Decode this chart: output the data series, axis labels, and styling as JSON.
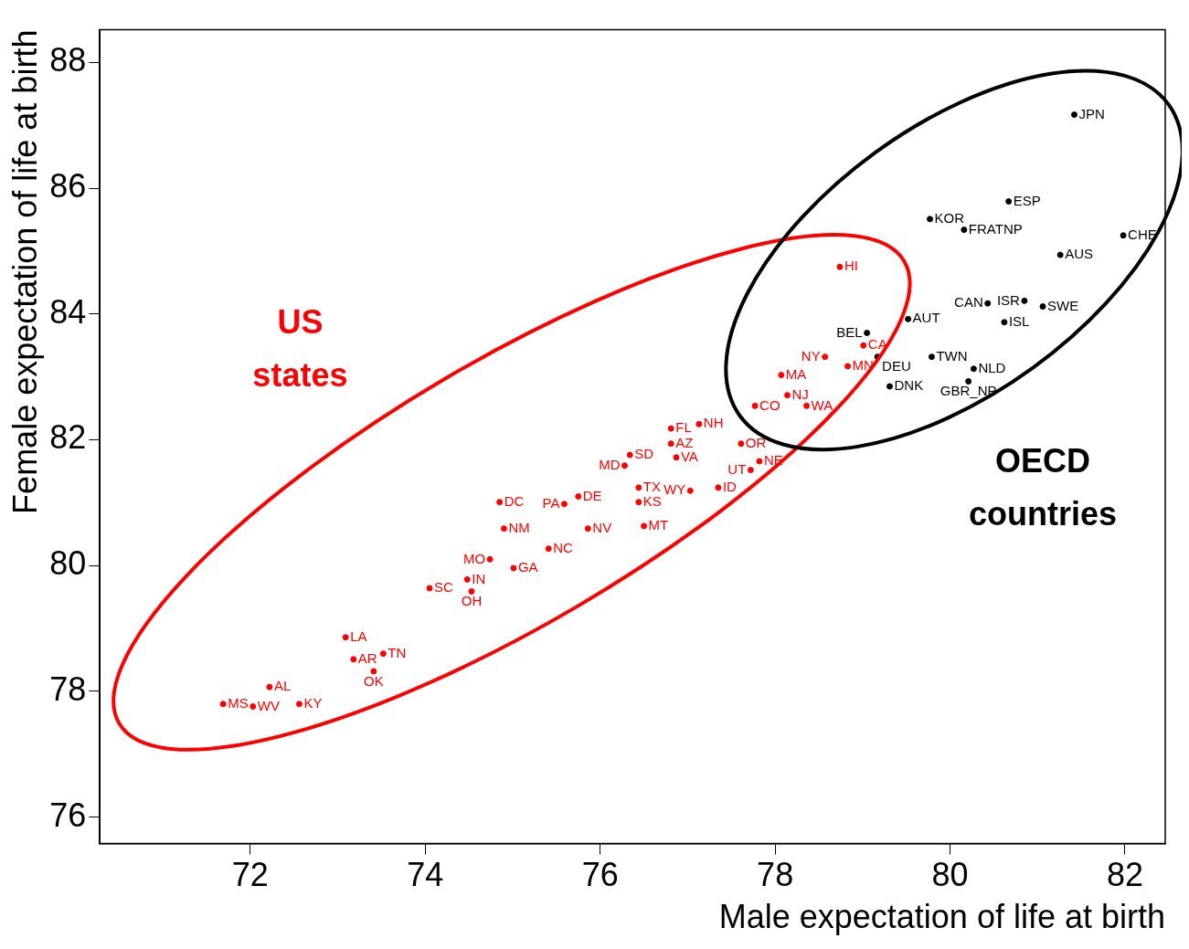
{
  "chart_data": {
    "type": "scatter",
    "xlabel": "Male expectation of life at birth",
    "ylabel": "Female expectation of life at birth",
    "xlim": [
      70.28,
      82.46
    ],
    "ylim": [
      75.58,
      88.52
    ],
    "xticks": [
      72,
      74,
      76,
      78,
      80,
      82
    ],
    "yticks": [
      76,
      78,
      80,
      82,
      84,
      86,
      88
    ],
    "grid": false,
    "legend": false,
    "marker": "circle",
    "series": [
      {
        "name": "US states",
        "color": "#ff0000",
        "x": [
          78.74,
          79.01,
          78.57,
          78.83,
          78.07,
          78.14,
          77.77,
          78.36,
          77.13,
          76.81,
          77.61,
          77.82,
          77.72,
          76.87,
          76.34,
          76.28,
          76.81,
          77.03,
          77.35,
          76.44,
          75.75,
          76.44,
          75.59,
          74.85,
          74.9,
          76.5,
          75.86,
          74.48,
          74.74,
          75.01,
          75.41,
          74.05,
          74.53,
          73.09,
          73.18,
          73.52,
          73.41,
          72.22,
          71.69,
          72.03,
          72.56
        ],
        "values": [
          84.75,
          83.5,
          83.32,
          83.17,
          83.03,
          82.71,
          82.54,
          82.54,
          82.25,
          82.18,
          81.94,
          81.66,
          81.52,
          81.72,
          81.76,
          81.59,
          81.94,
          81.19,
          81.24,
          81.24,
          81.1,
          81.01,
          80.98,
          81.01,
          80.59,
          80.63,
          80.59,
          79.78,
          80.1,
          79.96,
          80.27,
          79.64,
          79.59,
          78.86,
          78.51,
          78.6,
          78.32,
          78.07,
          77.8,
          77.76,
          77.8
        ],
        "value_labels": [
          "HI",
          "CA",
          "NY",
          "MN",
          "MA",
          "NJ",
          "CO",
          "WA",
          "NH",
          "FL",
          "OR",
          "NE",
          "UT",
          "VA",
          "SD",
          "MD",
          "AZ",
          "WY",
          "ID",
          "TX",
          "DE",
          "KS",
          "PA",
          "DC",
          "NM",
          "MT",
          "NV",
          "IN",
          "MO",
          "GA",
          "NC",
          "SC",
          "OH",
          "LA",
          "AR",
          "TN",
          "OK",
          "AL",
          "MS",
          "WV",
          "KY"
        ]
      },
      {
        "name": "OECD countries",
        "color": "#000000",
        "x": [
          81.42,
          80.67,
          79.77,
          80.16,
          81.26,
          81.98,
          80.43,
          80.85,
          81.06,
          80.62,
          79.52,
          79.05,
          79.17,
          79.79,
          80.27,
          79.31,
          80.21
        ],
        "values": [
          87.17,
          85.79,
          85.51,
          85.34,
          84.94,
          85.25,
          84.17,
          84.21,
          84.12,
          83.87,
          83.92,
          83.7,
          83.32,
          83.32,
          83.13,
          82.85,
          82.93
        ],
        "value_labels": [
          "JPN",
          "ESP",
          "KOR",
          "FRATNP",
          "AUS",
          "CHE",
          "CAN",
          "ISR",
          "SWE",
          "ISL",
          "AUT",
          "BEL",
          "DEU",
          "TWN",
          "NLD",
          "DNK",
          "GBR_NP"
        ]
      }
    ]
  }
}
